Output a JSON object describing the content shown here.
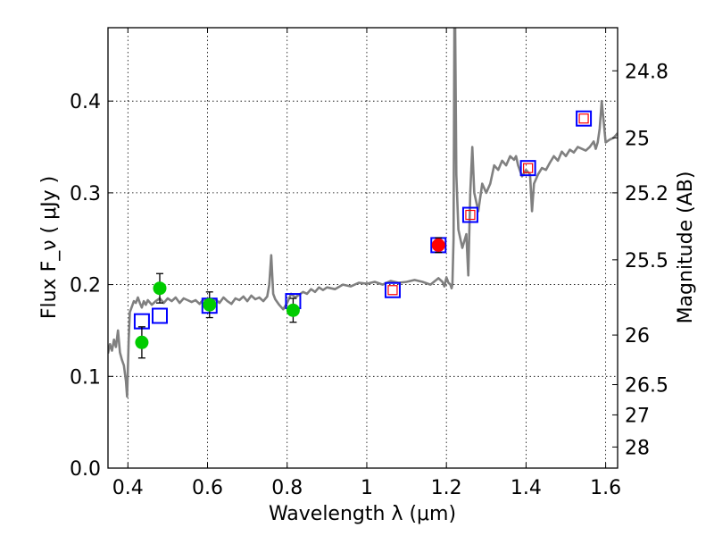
{
  "chart_data": {
    "type": "scatter",
    "xlabel": "Wavelength  λ (μm)",
    "ylabel": "Flux  F_ν  ( μJy )",
    "ylabel_right": "Magnitude (AB)",
    "xlim": [
      0.35,
      1.63
    ],
    "ylim": [
      0.0,
      0.48
    ],
    "grid": true,
    "x_ticks": [
      0.4,
      0.6,
      0.8,
      1.0,
      1.2,
      1.4,
      1.6
    ],
    "x_tick_labels": [
      "0.4",
      "0.6",
      "0.8",
      "1",
      "1.2",
      "1.4",
      "1.6"
    ],
    "y_ticks": [
      0.0,
      0.1,
      0.2,
      0.3,
      0.4
    ],
    "y_tick_labels": [
      "0.0",
      "0.1",
      "0.2",
      "0.3",
      "0.4"
    ],
    "right_ticks": [
      {
        "label": "24.8",
        "flux": 0.433
      },
      {
        "label": "25",
        "flux": 0.36
      },
      {
        "label": "25.2",
        "flux": 0.3
      },
      {
        "label": "25.5",
        "flux": 0.227
      },
      {
        "label": "26",
        "flux": 0.145
      },
      {
        "label": "26.5",
        "flux": 0.091
      },
      {
        "label": "27",
        "flux": 0.058
      },
      {
        "label": "28",
        "flux": 0.023
      }
    ],
    "series": [
      {
        "kind": "spectrum",
        "color": "#808080",
        "x": [
          0.35,
          0.355,
          0.36,
          0.365,
          0.37,
          0.375,
          0.38,
          0.385,
          0.39,
          0.395,
          0.398,
          0.402,
          0.405,
          0.41,
          0.415,
          0.42,
          0.425,
          0.43,
          0.435,
          0.44,
          0.445,
          0.45,
          0.46,
          0.47,
          0.48,
          0.49,
          0.5,
          0.51,
          0.52,
          0.53,
          0.54,
          0.55,
          0.56,
          0.57,
          0.58,
          0.59,
          0.6,
          0.61,
          0.62,
          0.63,
          0.64,
          0.65,
          0.66,
          0.67,
          0.68,
          0.69,
          0.7,
          0.71,
          0.72,
          0.73,
          0.74,
          0.75,
          0.755,
          0.76,
          0.765,
          0.77,
          0.78,
          0.79,
          0.8,
          0.81,
          0.82,
          0.83,
          0.84,
          0.85,
          0.86,
          0.87,
          0.88,
          0.89,
          0.9,
          0.92,
          0.94,
          0.96,
          0.98,
          1.0,
          1.02,
          1.04,
          1.06,
          1.08,
          1.1,
          1.12,
          1.14,
          1.16,
          1.18,
          1.19,
          1.195,
          1.2,
          1.205,
          1.21,
          1.213,
          1.215,
          1.218,
          1.22,
          1.222,
          1.225,
          1.23,
          1.24,
          1.25,
          1.255,
          1.26,
          1.265,
          1.27,
          1.28,
          1.29,
          1.3,
          1.31,
          1.32,
          1.33,
          1.34,
          1.35,
          1.36,
          1.37,
          1.375,
          1.38,
          1.39,
          1.4,
          1.41,
          1.415,
          1.42,
          1.43,
          1.44,
          1.45,
          1.46,
          1.47,
          1.48,
          1.49,
          1.5,
          1.51,
          1.52,
          1.53,
          1.54,
          1.55,
          1.56,
          1.57,
          1.575,
          1.58,
          1.585,
          1.59,
          1.6,
          1.61,
          1.62,
          1.63
        ],
        "values": [
          0.125,
          0.135,
          0.128,
          0.14,
          0.132,
          0.15,
          0.126,
          0.118,
          0.112,
          0.095,
          0.078,
          0.14,
          0.17,
          0.176,
          0.182,
          0.18,
          0.186,
          0.18,
          0.175,
          0.182,
          0.178,
          0.183,
          0.178,
          0.182,
          0.185,
          0.18,
          0.185,
          0.182,
          0.186,
          0.18,
          0.185,
          0.183,
          0.181,
          0.183,
          0.179,
          0.184,
          0.181,
          0.178,
          0.184,
          0.18,
          0.186,
          0.182,
          0.179,
          0.185,
          0.183,
          0.187,
          0.182,
          0.188,
          0.184,
          0.186,
          0.182,
          0.187,
          0.2,
          0.232,
          0.19,
          0.184,
          0.178,
          0.173,
          0.18,
          0.19,
          0.186,
          0.189,
          0.192,
          0.19,
          0.195,
          0.192,
          0.197,
          0.194,
          0.197,
          0.195,
          0.2,
          0.198,
          0.202,
          0.201,
          0.203,
          0.2,
          0.204,
          0.202,
          0.203,
          0.205,
          0.203,
          0.2,
          0.207,
          0.203,
          0.198,
          0.208,
          0.202,
          0.2,
          0.196,
          0.2,
          0.25,
          0.48,
          0.48,
          0.32,
          0.26,
          0.24,
          0.255,
          0.21,
          0.3,
          0.35,
          0.3,
          0.28,
          0.31,
          0.3,
          0.31,
          0.33,
          0.325,
          0.335,
          0.33,
          0.34,
          0.336,
          0.34,
          0.33,
          0.318,
          0.325,
          0.32,
          0.28,
          0.31,
          0.32,
          0.327,
          0.325,
          0.333,
          0.34,
          0.335,
          0.345,
          0.34,
          0.347,
          0.344,
          0.35,
          0.348,
          0.346,
          0.35,
          0.356,
          0.348,
          0.355,
          0.37,
          0.4,
          0.355,
          0.358,
          0.36,
          0.365
        ]
      },
      {
        "kind": "model-squares",
        "color": "#0000ff",
        "x": [
          0.435,
          0.48,
          0.605,
          0.815,
          1.065,
          1.18,
          1.26,
          1.405,
          1.545
        ],
        "values": [
          0.16,
          0.166,
          0.177,
          0.182,
          0.194,
          0.243,
          0.276,
          0.327,
          0.381
        ]
      },
      {
        "kind": "inner-squares",
        "color": "#ff0000",
        "x": [
          1.065,
          1.26,
          1.405,
          1.545
        ],
        "values": [
          0.194,
          0.276,
          0.327,
          0.381
        ]
      },
      {
        "kind": "photometry",
        "color": "#00cc00",
        "x": [
          0.435,
          0.48,
          0.605,
          0.815
        ],
        "values": [
          0.137,
          0.196,
          0.178,
          0.172
        ],
        "errors": [
          0.017,
          0.016,
          0.014,
          0.013
        ]
      },
      {
        "kind": "photometry-red",
        "color": "#ff0000",
        "x": [
          1.18
        ],
        "values": [
          0.243
        ],
        "errors": [
          0.008
        ]
      }
    ]
  }
}
